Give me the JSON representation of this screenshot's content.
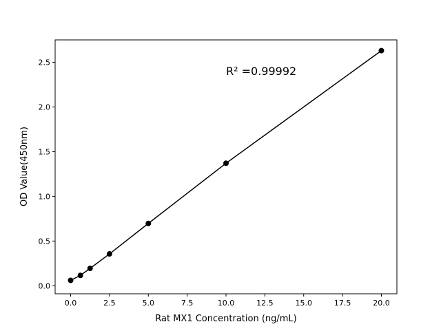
{
  "chart_data": {
    "type": "line",
    "title": "",
    "xlabel": "Rat MX1 Concentration (ng/mL)",
    "ylabel": "OD Value(450nm)",
    "annotation": "R² =0.99992",
    "xlim": [
      -1,
      21
    ],
    "ylim": [
      -0.09,
      2.75
    ],
    "xticks": [
      "0.0",
      "2.5",
      "5.0",
      "7.5",
      "10.0",
      "12.5",
      "15.0",
      "17.5",
      "20.0"
    ],
    "yticks": [
      "0.0",
      "0.5",
      "1.0",
      "1.5",
      "2.0",
      "2.5"
    ],
    "grid": false,
    "series": [
      {
        "x": [
          0,
          0.625,
          1.25,
          2.5,
          5,
          10,
          20
        ],
        "y": [
          0.06,
          0.116,
          0.194,
          0.356,
          0.697,
          1.37,
          2.63
        ],
        "color": "#000000",
        "marker": "circle"
      }
    ]
  }
}
